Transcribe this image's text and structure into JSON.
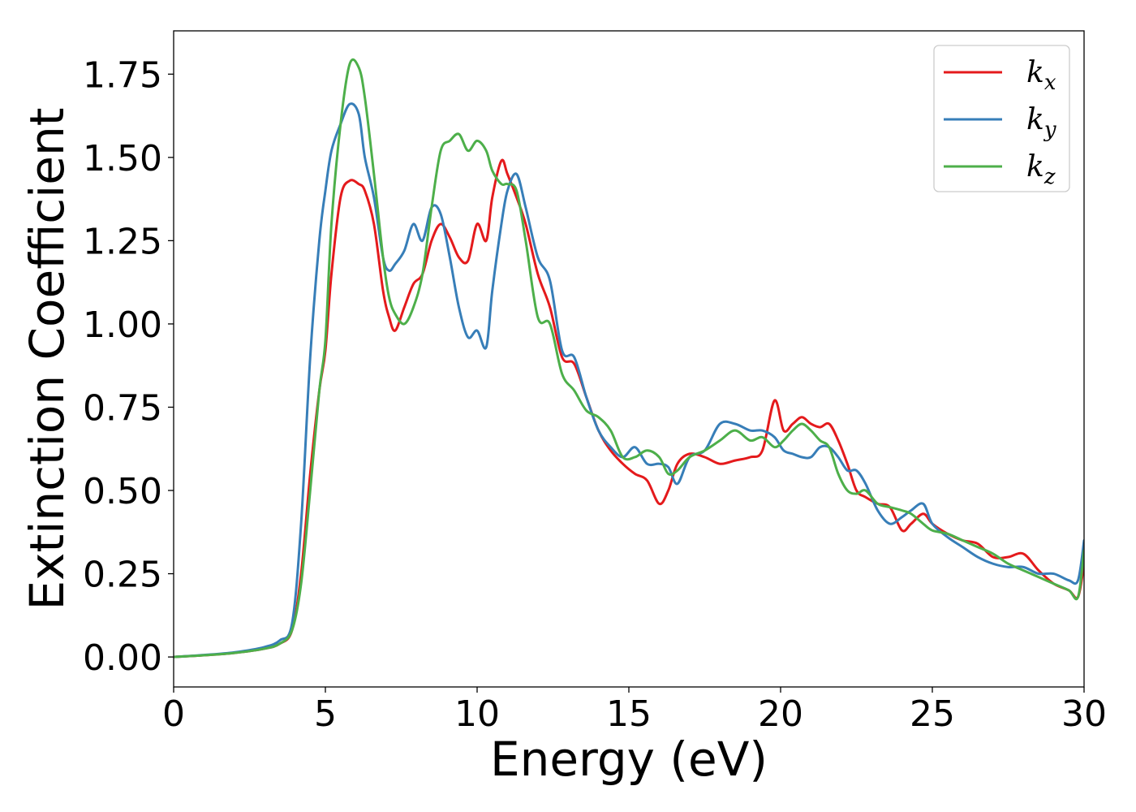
{
  "chart_data": {
    "type": "line",
    "xlabel": "Energy (eV)",
    "ylabel": "Extinction Coefficient",
    "xlim": [
      0,
      30
    ],
    "ylim": [
      -0.09,
      1.88
    ],
    "xticks": [
      0,
      5,
      10,
      15,
      20,
      25,
      30
    ],
    "xtick_labels": [
      "0",
      "5",
      "10",
      "15",
      "20",
      "25",
      "30"
    ],
    "yticks": [
      0,
      0.25,
      0.5,
      0.75,
      1.0,
      1.25,
      1.5,
      1.75
    ],
    "ytick_labels": [
      "0.00",
      "0.25",
      "0.50",
      "0.75",
      "1.00",
      "1.25",
      "1.50",
      "1.75"
    ],
    "grid": false,
    "legend_position": "top-right",
    "series": [
      {
        "name": "k",
        "subscript": "x",
        "color": "#e41a1c",
        "x": [
          0,
          1,
          2,
          3,
          3.5,
          3.9,
          4.2,
          4.5,
          4.8,
          5.0,
          5.2,
          5.5,
          5.8,
          6.1,
          6.3,
          6.6,
          6.9,
          7.1,
          7.3,
          7.6,
          7.9,
          8.2,
          8.5,
          8.8,
          9.1,
          9.4,
          9.7,
          10.0,
          10.3,
          10.5,
          10.8,
          11.0,
          11.3,
          11.6,
          12.0,
          12.4,
          12.8,
          13.2,
          13.6,
          14.0,
          14.4,
          14.8,
          15.2,
          15.6,
          16.0,
          16.3,
          16.6,
          17.0,
          17.5,
          18.0,
          18.5,
          19.0,
          19.4,
          19.8,
          20.1,
          20.4,
          20.7,
          21.0,
          21.3,
          21.6,
          21.9,
          22.2,
          22.5,
          22.8,
          23.2,
          23.6,
          24.0,
          24.3,
          24.7,
          25.0,
          25.5,
          26.0,
          26.5,
          27.0,
          27.5,
          28.0,
          28.5,
          29.0,
          29.5,
          29.8,
          30.0
        ],
        "y": [
          0.0,
          0.005,
          0.012,
          0.025,
          0.04,
          0.08,
          0.25,
          0.55,
          0.8,
          0.92,
          1.15,
          1.38,
          1.43,
          1.42,
          1.4,
          1.3,
          1.1,
          1.02,
          0.98,
          1.05,
          1.12,
          1.15,
          1.25,
          1.3,
          1.26,
          1.2,
          1.19,
          1.3,
          1.25,
          1.38,
          1.49,
          1.45,
          1.38,
          1.3,
          1.15,
          1.05,
          0.9,
          0.88,
          0.78,
          0.68,
          0.62,
          0.58,
          0.55,
          0.53,
          0.46,
          0.5,
          0.58,
          0.61,
          0.6,
          0.58,
          0.59,
          0.6,
          0.62,
          0.77,
          0.68,
          0.7,
          0.72,
          0.7,
          0.69,
          0.7,
          0.65,
          0.58,
          0.5,
          0.48,
          0.46,
          0.45,
          0.38,
          0.4,
          0.43,
          0.4,
          0.37,
          0.35,
          0.34,
          0.3,
          0.3,
          0.31,
          0.26,
          0.22,
          0.2,
          0.18,
          0.28
        ]
      },
      {
        "name": "k",
        "subscript": "y",
        "color": "#377eb8",
        "x": [
          0,
          1,
          2,
          3,
          3.5,
          3.9,
          4.2,
          4.5,
          4.8,
          5.0,
          5.2,
          5.5,
          5.8,
          6.1,
          6.3,
          6.6,
          6.9,
          7.1,
          7.3,
          7.6,
          7.9,
          8.2,
          8.5,
          8.8,
          9.1,
          9.4,
          9.7,
          10.0,
          10.3,
          10.5,
          10.8,
          11.0,
          11.3,
          11.6,
          12.0,
          12.4,
          12.8,
          13.2,
          13.6,
          14.0,
          14.4,
          14.8,
          15.2,
          15.6,
          16.0,
          16.3,
          16.6,
          17.0,
          17.5,
          18.0,
          18.5,
          19.0,
          19.4,
          19.8,
          20.1,
          20.4,
          20.7,
          21.0,
          21.3,
          21.6,
          21.9,
          22.2,
          22.5,
          22.8,
          23.2,
          23.6,
          24.0,
          24.3,
          24.7,
          25.0,
          25.5,
          26.0,
          26.5,
          27.0,
          27.5,
          28.0,
          28.5,
          29.0,
          29.5,
          29.8,
          30.0
        ],
        "y": [
          0.0,
          0.006,
          0.014,
          0.03,
          0.05,
          0.1,
          0.4,
          0.9,
          1.25,
          1.4,
          1.52,
          1.6,
          1.66,
          1.63,
          1.5,
          1.38,
          1.2,
          1.16,
          1.18,
          1.22,
          1.3,
          1.25,
          1.35,
          1.33,
          1.2,
          1.05,
          0.96,
          0.98,
          0.93,
          1.1,
          1.3,
          1.4,
          1.45,
          1.35,
          1.2,
          1.13,
          0.92,
          0.9,
          0.78,
          0.68,
          0.63,
          0.6,
          0.63,
          0.58,
          0.58,
          0.57,
          0.52,
          0.6,
          0.62,
          0.7,
          0.7,
          0.68,
          0.68,
          0.66,
          0.62,
          0.61,
          0.6,
          0.6,
          0.63,
          0.63,
          0.6,
          0.56,
          0.56,
          0.52,
          0.44,
          0.4,
          0.42,
          0.44,
          0.46,
          0.4,
          0.36,
          0.33,
          0.3,
          0.28,
          0.27,
          0.27,
          0.25,
          0.25,
          0.23,
          0.23,
          0.35
        ]
      },
      {
        "name": "k",
        "subscript": "z",
        "color": "#4daf4a",
        "x": [
          0,
          1,
          2,
          3,
          3.5,
          3.9,
          4.2,
          4.5,
          4.8,
          5.0,
          5.2,
          5.5,
          5.8,
          6.1,
          6.3,
          6.6,
          6.9,
          7.1,
          7.3,
          7.6,
          7.9,
          8.2,
          8.5,
          8.8,
          9.1,
          9.4,
          9.7,
          10.0,
          10.3,
          10.5,
          10.8,
          11.0,
          11.3,
          11.6,
          12.0,
          12.4,
          12.8,
          13.2,
          13.6,
          14.0,
          14.4,
          14.8,
          15.2,
          15.6,
          16.0,
          16.3,
          16.6,
          17.0,
          17.5,
          18.0,
          18.5,
          19.0,
          19.4,
          19.8,
          20.1,
          20.4,
          20.7,
          21.0,
          21.3,
          21.6,
          21.9,
          22.2,
          22.5,
          22.8,
          23.2,
          23.6,
          24.0,
          24.3,
          24.7,
          25.0,
          25.5,
          26.0,
          26.5,
          27.0,
          27.5,
          28.0,
          28.5,
          29.0,
          29.5,
          29.8,
          30.0
        ],
        "y": [
          0.0,
          0.005,
          0.012,
          0.025,
          0.04,
          0.08,
          0.22,
          0.5,
          0.8,
          0.95,
          1.3,
          1.6,
          1.78,
          1.77,
          1.68,
          1.45,
          1.2,
          1.08,
          1.03,
          1.0,
          1.05,
          1.15,
          1.35,
          1.52,
          1.55,
          1.57,
          1.52,
          1.55,
          1.52,
          1.46,
          1.42,
          1.42,
          1.4,
          1.25,
          1.02,
          1.0,
          0.85,
          0.8,
          0.74,
          0.72,
          0.68,
          0.6,
          0.6,
          0.62,
          0.6,
          0.55,
          0.56,
          0.6,
          0.62,
          0.65,
          0.68,
          0.65,
          0.66,
          0.63,
          0.65,
          0.68,
          0.7,
          0.68,
          0.65,
          0.63,
          0.55,
          0.5,
          0.49,
          0.5,
          0.46,
          0.45,
          0.44,
          0.43,
          0.4,
          0.38,
          0.37,
          0.35,
          0.33,
          0.31,
          0.28,
          0.26,
          0.24,
          0.22,
          0.2,
          0.18,
          0.32
        ]
      }
    ]
  }
}
